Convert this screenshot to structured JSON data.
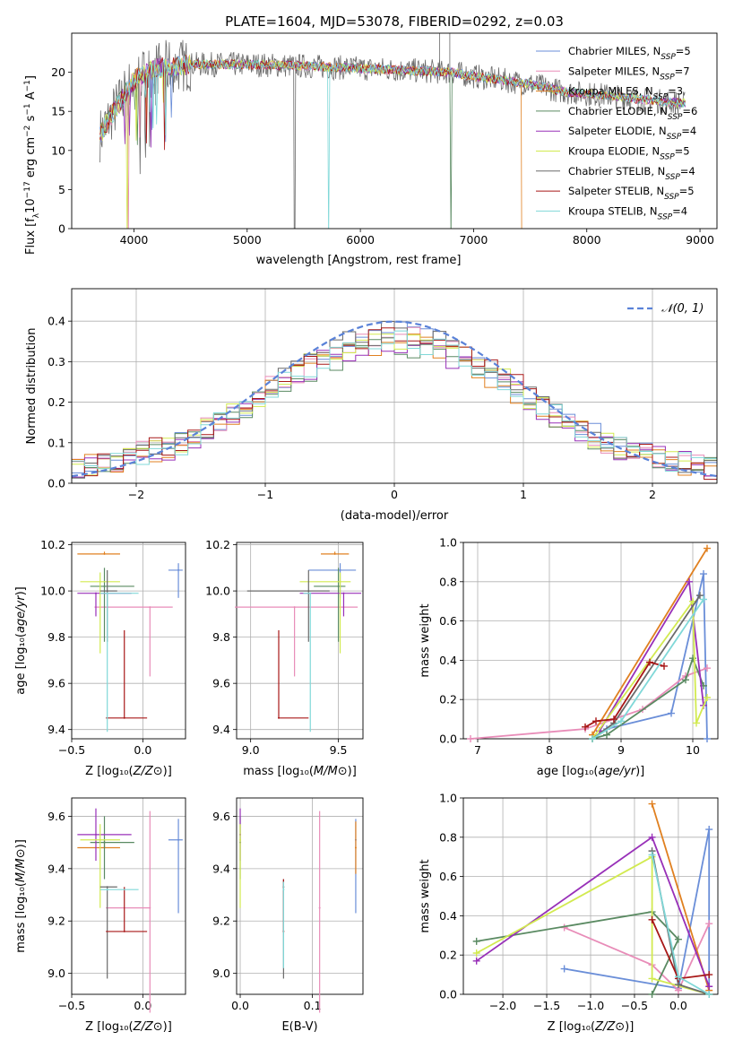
{
  "figure": {
    "title": "PLATE=1604, MJD=53078, FIBERID=0292, z=0.03"
  },
  "colors": {
    "Chabrier MILES": "#6a8ed8",
    "Salpeter MILES": "#e88cb8",
    "Kroupa MILES": "#e08020",
    "Chabrier ELODIE": "#5a8a62",
    "Salpeter ELODIE": "#9830b8",
    "Kroupa ELODIE": "#d2ea50",
    "Chabrier STELIB": "#6a6a6a",
    "Salpeter STELIB": "#a81818",
    "Kroupa STELIB": "#80d8d8"
  },
  "chart_data": [
    {
      "type": "line",
      "title": "PLATE=1604, MJD=53078, FIBERID=0292, z=0.03",
      "xlabel": "wavelength [Angstrom, rest frame]",
      "ylabel": "Flux [fλ10⁻¹⁷ erg cm⁻² s⁻¹ A⁻¹]",
      "xlim": [
        3450,
        9150
      ],
      "ylim": [
        0,
        25
      ],
      "xticks": [
        4000,
        5000,
        6000,
        7000,
        8000,
        9000
      ],
      "yticks": [
        0,
        5,
        10,
        15,
        20
      ],
      "legend": "top-right",
      "series": [
        {
          "name": "Chabrier MILES",
          "nssp": "5"
        },
        {
          "name": "Salpeter MILES",
          "nssp": "7"
        },
        {
          "name": "Kroupa MILES",
          "nssp": "3"
        },
        {
          "name": "Chabrier ELODIE",
          "nssp": "6"
        },
        {
          "name": "Salpeter ELODIE",
          "nssp": "4"
        },
        {
          "name": "Kroupa ELODIE",
          "nssp": "5"
        },
        {
          "name": "Chabrier STELIB",
          "nssp": "4"
        },
        {
          "name": "Salpeter STELIB",
          "nssp": "5"
        },
        {
          "name": "Kroupa STELIB",
          "nssp": "4"
        }
      ],
      "continuum": [
        [
          3700,
          12
        ],
        [
          3800,
          14.5
        ],
        [
          4000,
          19
        ],
        [
          4200,
          20.5
        ],
        [
          4500,
          21
        ],
        [
          5000,
          21
        ],
        [
          5500,
          20.8
        ],
        [
          6000,
          20.5
        ],
        [
          6500,
          20.2
        ],
        [
          6800,
          20
        ],
        [
          7000,
          19.5
        ],
        [
          7500,
          18.5
        ],
        [
          7800,
          17.5
        ],
        [
          8200,
          17
        ],
        [
          8500,
          16.5
        ],
        [
          8870,
          16
        ]
      ]
    },
    {
      "type": "line",
      "xlabel": "(data-model)/error",
      "ylabel": "Normed distribution",
      "xlim": [
        -2.5,
        2.5
      ],
      "ylim": [
        0,
        0.48
      ],
      "xticks": [
        -2,
        -1,
        0,
        1,
        2
      ],
      "yticks": [
        0.0,
        0.1,
        0.2,
        0.3,
        0.4
      ],
      "grid": true,
      "legend": "top-right",
      "reference_label": "𝒩(0, 1)",
      "bin_width": 0.1
    },
    {
      "type": "scatter",
      "xlabel": "Z [log₁₀(Z/Z⊙)]",
      "ylabel": "age  [log₁₀(age/yr)]",
      "xlim": [
        -0.5,
        0.3
      ],
      "ylim": [
        9.36,
        10.21
      ],
      "xticks": [
        -0.5,
        0.0
      ],
      "yticks": [
        9.4,
        9.6,
        9.8,
        10.0,
        10.2
      ],
      "grid": true,
      "points": [
        {
          "series": "Chabrier MILES",
          "x": 0.25,
          "y": 10.09,
          "xerr": [
            0.07,
            0.03
          ],
          "yerr": [
            0.12,
            0.03
          ]
        },
        {
          "series": "Salpeter MILES",
          "x": 0.05,
          "y": 9.93,
          "xerr": [
            0.39,
            0.16
          ],
          "yerr": [
            0.3,
            0.0
          ]
        },
        {
          "series": "Kroupa MILES",
          "x": -0.27,
          "y": 10.16,
          "xerr": [
            0.19,
            0.11
          ],
          "yerr": [
            0.0,
            0.01
          ]
        },
        {
          "series": "Chabrier ELODIE",
          "x": -0.27,
          "y": 10.02,
          "xerr": [
            0.1,
            0.21
          ],
          "yerr": [
            0.24,
            0.08
          ]
        },
        {
          "series": "Salpeter ELODIE",
          "x": -0.33,
          "y": 9.99,
          "xerr": [
            0.13,
            0.25
          ],
          "yerr": [
            0.1,
            0.0
          ]
        },
        {
          "series": "Kroupa ELODIE",
          "x": -0.3,
          "y": 10.04,
          "xerr": [
            0.14,
            0.14
          ],
          "yerr": [
            0.31,
            0.04
          ]
        },
        {
          "series": "Chabrier STELIB",
          "x": -0.25,
          "y": 10.0,
          "xerr": [
            0.05,
            0.07
          ],
          "yerr": [
            0.22,
            0.09
          ]
        },
        {
          "series": "Salpeter STELIB",
          "x": -0.13,
          "y": 9.45,
          "xerr": [
            0.13,
            0.16
          ],
          "yerr": [
            0.0,
            0.38
          ]
        },
        {
          "series": "Kroupa STELIB",
          "x": -0.25,
          "y": 9.99,
          "xerr": [
            0.05,
            0.22
          ],
          "yerr": [
            0.6,
            0.0
          ]
        }
      ]
    },
    {
      "type": "scatter",
      "xlabel": "mass [log₁₀(M/M⊙)]",
      "xlim": [
        8.92,
        9.64
      ],
      "ylim": [
        9.36,
        10.21
      ],
      "xticks": [
        9.0,
        9.5
      ],
      "yticks": [
        9.4,
        9.6,
        9.8,
        10.0,
        10.2
      ],
      "grid": true,
      "points": [
        {
          "series": "Chabrier MILES",
          "x": 9.51,
          "y": 10.09,
          "xerr": [
            0.18,
            0.09
          ],
          "yerr": [
            0.12,
            0.03
          ]
        },
        {
          "series": "Salpeter MILES",
          "x": 9.25,
          "y": 9.93,
          "xerr": [
            0.34,
            0.36
          ],
          "yerr": [
            0.3,
            0.0
          ]
        },
        {
          "series": "Kroupa MILES",
          "x": 9.48,
          "y": 10.16,
          "xerr": [
            0.08,
            0.08
          ],
          "yerr": [
            0.0,
            0.01
          ]
        },
        {
          "series": "Chabrier ELODIE",
          "x": 9.5,
          "y": 10.02,
          "xerr": [
            0.14,
            0.04
          ],
          "yerr": [
            0.24,
            0.08
          ]
        },
        {
          "series": "Salpeter ELODIE",
          "x": 9.53,
          "y": 9.99,
          "xerr": [
            0.25,
            0.1
          ],
          "yerr": [
            0.1,
            0.0
          ]
        },
        {
          "series": "Kroupa ELODIE",
          "x": 9.51,
          "y": 10.04,
          "xerr": [
            0.23,
            0.06
          ],
          "yerr": [
            0.31,
            0.04
          ]
        },
        {
          "series": "Chabrier STELIB",
          "x": 9.33,
          "y": 10.0,
          "xerr": [
            0.35,
            0.12
          ],
          "yerr": [
            0.22,
            0.09
          ]
        },
        {
          "series": "Salpeter STELIB",
          "x": 9.16,
          "y": 9.45,
          "xerr": [
            0.0,
            0.17
          ],
          "yerr": [
            0.0,
            0.38
          ]
        },
        {
          "series": "Kroupa STELIB",
          "x": 9.34,
          "y": 9.99,
          "xerr": [
            0.04,
            0.0
          ],
          "yerr": [
            0.6,
            0.0
          ]
        }
      ]
    },
    {
      "type": "line",
      "xlabel": "age  [log₁₀(age/yr)]",
      "ylabel": "mass weight",
      "xlim": [
        6.8,
        10.35
      ],
      "ylim": [
        0,
        1
      ],
      "xticks": [
        7,
        8,
        9,
        10
      ],
      "yticks": [
        0.0,
        0.2,
        0.4,
        0.6,
        0.8,
        1.0
      ],
      "grid": true,
      "series": [
        {
          "name": "Chabrier MILES",
          "points": [
            [
              8.8,
              0.05
            ],
            [
              9.7,
              0.13
            ],
            [
              10.15,
              0.84
            ],
            [
              10.2,
              0.0
            ]
          ]
        },
        {
          "name": "Salpeter MILES",
          "points": [
            [
              6.9,
              0.0
            ],
            [
              8.5,
              0.05
            ],
            [
              9.3,
              0.15
            ],
            [
              9.9,
              0.32
            ],
            [
              10.2,
              0.36
            ]
          ]
        },
        {
          "name": "Kroupa MILES",
          "points": [
            [
              8.6,
              0.02
            ],
            [
              10.2,
              0.97
            ]
          ]
        },
        {
          "name": "Chabrier ELODIE",
          "points": [
            [
              8.6,
              0.0
            ],
            [
              8.8,
              0.02
            ],
            [
              9.9,
              0.3
            ],
            [
              10.0,
              0.41
            ],
            [
              10.15,
              0.27
            ]
          ]
        },
        {
          "name": "Salpeter ELODIE",
          "points": [
            [
              8.7,
              0.04
            ],
            [
              9.95,
              0.8
            ],
            [
              10.15,
              0.17
            ]
          ]
        },
        {
          "name": "Kroupa ELODIE",
          "points": [
            [
              8.6,
              0.0
            ],
            [
              10.0,
              0.7
            ],
            [
              10.05,
              0.08
            ],
            [
              10.2,
              0.21
            ]
          ]
        },
        {
          "name": "Chabrier STELIB",
          "points": [
            [
              8.6,
              0.0
            ],
            [
              8.9,
              0.08
            ],
            [
              10.1,
              0.73
            ]
          ]
        },
        {
          "name": "Salpeter STELIB",
          "points": [
            [
              8.5,
              0.06
            ],
            [
              8.65,
              0.09
            ],
            [
              8.9,
              0.1
            ],
            [
              9.4,
              0.39
            ],
            [
              9.6,
              0.37
            ]
          ]
        },
        {
          "name": "Kroupa STELIB",
          "points": [
            [
              8.6,
              0.0
            ],
            [
              9.0,
              0.09
            ],
            [
              10.15,
              0.71
            ]
          ]
        }
      ]
    },
    {
      "type": "scatter",
      "xlabel": "Z [log₁₀(Z/Z⊙)]",
      "ylabel": "mass [log₁₀(M/M⊙)]",
      "xlim": [
        -0.5,
        0.3
      ],
      "ylim": [
        8.92,
        9.67
      ],
      "xticks": [
        -0.5,
        0.0
      ],
      "yticks": [
        9.0,
        9.2,
        9.4,
        9.6
      ],
      "grid": true,
      "points": [
        {
          "series": "Chabrier MILES",
          "x": 0.25,
          "y": 9.51,
          "xerr": [
            0.07,
            0.03
          ],
          "yerr": [
            0.28,
            0.08
          ]
        },
        {
          "series": "Salpeter MILES",
          "x": 0.05,
          "y": 9.25,
          "xerr": [
            0.31,
            0.0
          ],
          "yerr": [
            0.4,
            0.37
          ]
        },
        {
          "series": "Kroupa MILES",
          "x": -0.27,
          "y": 9.48,
          "xerr": [
            0.19,
            0.11
          ],
          "yerr": [
            0.0,
            0.03
          ]
        },
        {
          "series": "Chabrier ELODIE",
          "x": -0.27,
          "y": 9.5,
          "xerr": [
            0.1,
            0.21
          ],
          "yerr": [
            0.14,
            0.1
          ]
        },
        {
          "series": "Salpeter ELODIE",
          "x": -0.33,
          "y": 9.53,
          "xerr": [
            0.13,
            0.25
          ],
          "yerr": [
            0.1,
            0.1
          ]
        },
        {
          "series": "Kroupa ELODIE",
          "x": -0.3,
          "y": 9.51,
          "xerr": [
            0.14,
            0.14
          ],
          "yerr": [
            0.26,
            0.06
          ]
        },
        {
          "series": "Chabrier STELIB",
          "x": -0.25,
          "y": 9.33,
          "xerr": [
            0.05,
            0.07
          ],
          "yerr": [
            0.35,
            0.0
          ]
        },
        {
          "series": "Salpeter STELIB",
          "x": -0.13,
          "y": 9.16,
          "xerr": [
            0.13,
            0.16
          ],
          "yerr": [
            0.0,
            0.17
          ]
        },
        {
          "series": "Kroupa STELIB",
          "x": -0.25,
          "y": 9.32,
          "xerr": [
            0.05,
            0.22
          ],
          "yerr": [
            0.0,
            0.0
          ]
        }
      ]
    },
    {
      "type": "scatter",
      "xlabel": "E(B-V)",
      "xlim": [
        -0.005,
        0.17
      ],
      "ylim": [
        8.92,
        9.67
      ],
      "xticks": [
        0.0,
        0.1
      ],
      "yticks": [
        9.0,
        9.2,
        9.4,
        9.6
      ],
      "grid": true,
      "points": [
        {
          "series": "Chabrier MILES",
          "x": 0.16,
          "y": 9.51,
          "yerr": [
            0.28,
            0.08
          ]
        },
        {
          "series": "Salpeter MILES",
          "x": 0.11,
          "y": 9.25,
          "yerr": [
            0.4,
            0.37
          ]
        },
        {
          "series": "Kroupa MILES",
          "x": 0.16,
          "y": 9.48,
          "yerr": [
            0.1,
            0.1
          ]
        },
        {
          "series": "Chabrier ELODIE",
          "x": 0.0,
          "y": 9.5,
          "yerr": [
            0.14,
            0.1
          ]
        },
        {
          "series": "Salpeter ELODIE",
          "x": 0.0,
          "y": 9.53,
          "yerr": [
            0.1,
            0.1
          ]
        },
        {
          "series": "Kroupa ELODIE",
          "x": 0.0,
          "y": 9.51,
          "yerr": [
            0.26,
            0.06
          ]
        },
        {
          "series": "Chabrier STELIB",
          "x": 0.06,
          "y": 9.33,
          "yerr": [
            0.35,
            0.03
          ]
        },
        {
          "series": "Salpeter STELIB",
          "x": 0.06,
          "y": 9.16,
          "yerr": [
            0.0,
            0.2
          ]
        },
        {
          "series": "Kroupa STELIB",
          "x": 0.06,
          "y": 9.32,
          "yerr": [
            0.3,
            0.03
          ]
        }
      ]
    },
    {
      "type": "line",
      "xlabel": "Z [log₁₀(Z/Z⊙)]",
      "ylabel": "mass weight",
      "xlim": [
        -2.45,
        0.45
      ],
      "ylim": [
        0,
        1
      ],
      "xticks": [
        -2.0,
        -1.5,
        -1.0,
        -0.5,
        0.0
      ],
      "yticks": [
        0.0,
        0.2,
        0.4,
        0.6,
        0.8,
        1.0
      ],
      "grid": true,
      "series": [
        {
          "name": "Chabrier MILES",
          "points": [
            [
              -1.3,
              0.13
            ],
            [
              0.0,
              0.03
            ],
            [
              0.35,
              0.84
            ],
            [
              0.35,
              0.0
            ]
          ]
        },
        {
          "name": "Salpeter MILES",
          "points": [
            [
              -1.3,
              0.34
            ],
            [
              -0.3,
              0.15
            ],
            [
              0.0,
              0.02
            ],
            [
              0.35,
              0.36
            ]
          ]
        },
        {
          "name": "Kroupa MILES",
          "points": [
            [
              -0.3,
              0.97
            ],
            [
              0.35,
              0.02
            ]
          ]
        },
        {
          "name": "Chabrier ELODIE",
          "points": [
            [
              -2.3,
              0.27
            ],
            [
              -0.3,
              0.42
            ],
            [
              0.0,
              0.28
            ],
            [
              -0.3,
              0.0
            ]
          ]
        },
        {
          "name": "Salpeter ELODIE",
          "points": [
            [
              -2.3,
              0.17
            ],
            [
              -0.3,
              0.8
            ],
            [
              0.35,
              0.04
            ]
          ]
        },
        {
          "name": "Kroupa ELODIE",
          "points": [
            [
              -2.3,
              0.21
            ],
            [
              -0.3,
              0.7
            ],
            [
              -0.3,
              0.08
            ],
            [
              0.35,
              0.0
            ]
          ]
        },
        {
          "name": "Chabrier STELIB",
          "points": [
            [
              -0.3,
              0.73
            ],
            [
              0.0,
              0.05
            ],
            [
              0.35,
              0.0
            ]
          ]
        },
        {
          "name": "Salpeter STELIB",
          "points": [
            [
              -0.3,
              0.38
            ],
            [
              0.0,
              0.08
            ],
            [
              0.35,
              0.1
            ]
          ]
        },
        {
          "name": "Kroupa STELIB",
          "points": [
            [
              -0.3,
              0.71
            ],
            [
              0.0,
              0.09
            ],
            [
              0.35,
              0.0
            ]
          ]
        }
      ]
    }
  ]
}
